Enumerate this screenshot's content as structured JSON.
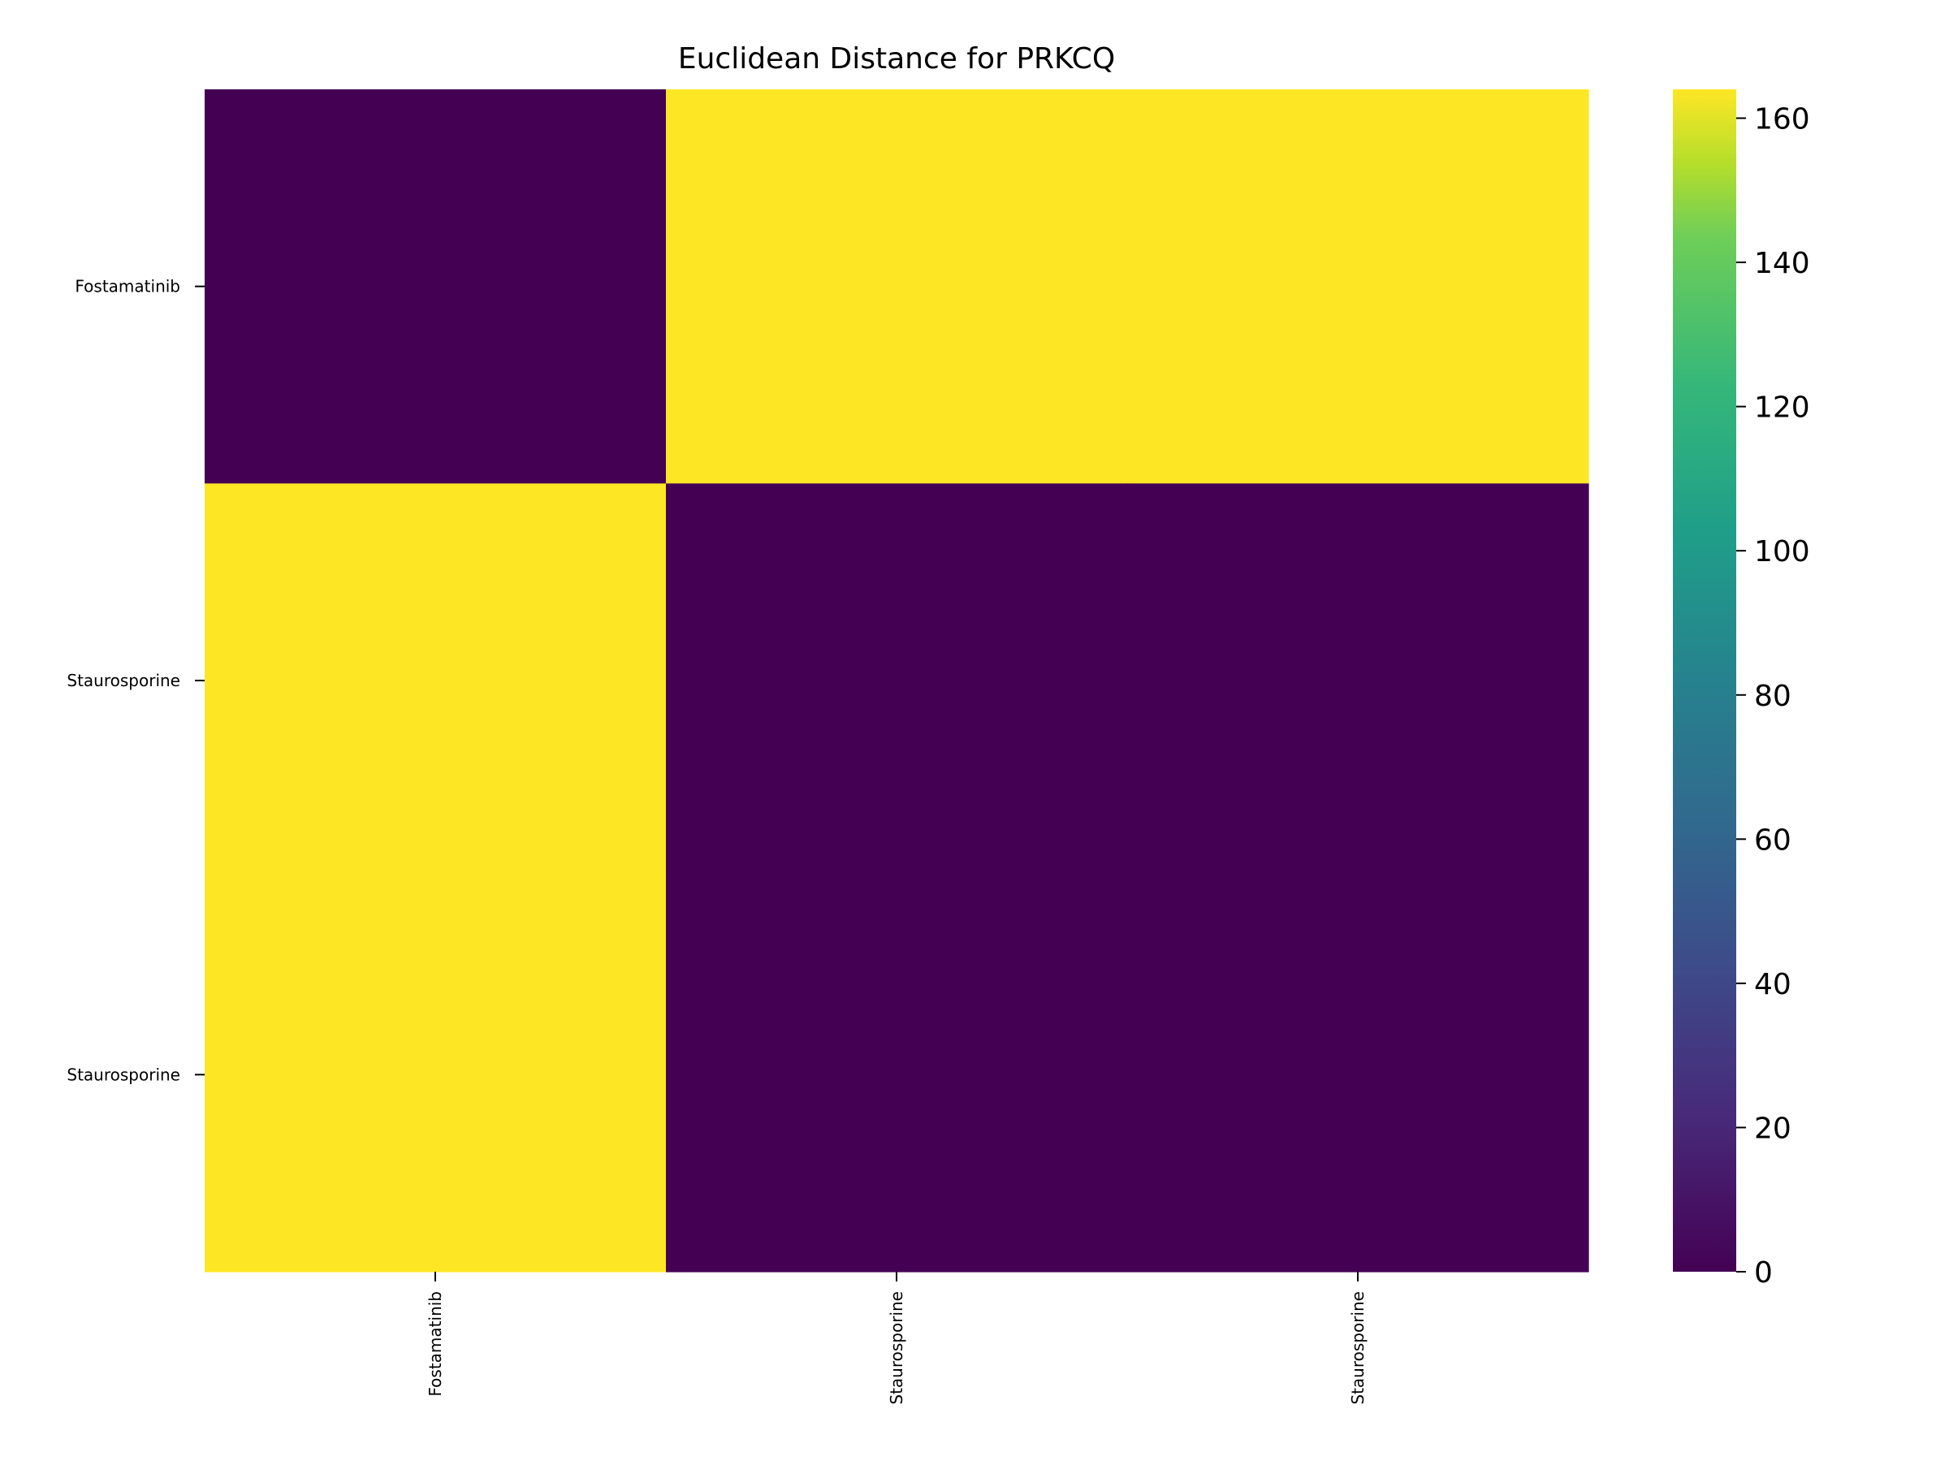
{
  "chart_data": {
    "type": "heatmap",
    "title": "Euclidean Distance for PRKCQ",
    "x_labels": [
      "Fostamatinib",
      "Staurosporine",
      "Staurosporine"
    ],
    "y_labels": [
      "Fostamatinib",
      "Staurosporine",
      "Staurosporine"
    ],
    "values": [
      [
        0,
        164,
        164
      ],
      [
        164,
        0,
        0
      ],
      [
        164,
        0,
        0
      ]
    ],
    "colorbar": {
      "min": 0,
      "max": 164,
      "ticks": [
        0,
        20,
        40,
        60,
        80,
        100,
        120,
        140,
        160
      ],
      "colormap": "viridis"
    },
    "colors": {
      "low": "#440154",
      "high": "#fde725"
    }
  }
}
